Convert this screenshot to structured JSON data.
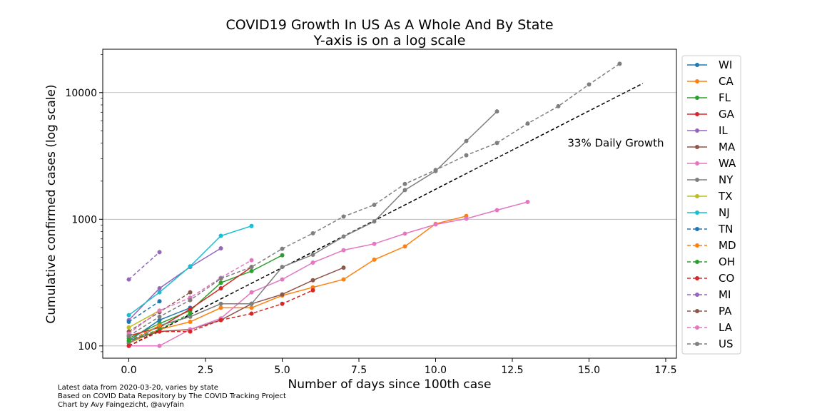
{
  "chart_data": {
    "type": "line",
    "title": "COVID19 Growth In US As A Whole And By State",
    "subtitle": "Y-axis is on a log scale",
    "xlabel": "Number of days since 100th case",
    "ylabel": "Cumulative confirmed cases (log scale)",
    "xlim": [
      -0.85,
      17.85
    ],
    "ylim": [
      80,
      22000
    ],
    "yscale": "log",
    "xticks": [
      0.0,
      2.5,
      5.0,
      7.5,
      10.0,
      12.5,
      15.0,
      17.5
    ],
    "xtick_labels": [
      "0.0",
      "2.5",
      "5.0",
      "7.5",
      "10.0",
      "12.5",
      "15.0",
      "17.5"
    ],
    "yticks": [
      100,
      1000,
      10000
    ],
    "ytick_labels": [
      "100",
      "1000",
      "10000"
    ],
    "grid": "horizontal",
    "legend_position": "right-outside",
    "annotation": {
      "text": "33% Daily Growth",
      "x": 14.3,
      "y": 4000
    },
    "reference_line": {
      "name": "33% Daily Growth",
      "style": "dashed",
      "color": "#000000",
      "x": [
        0,
        16.75
      ],
      "y": [
        100,
        11800
      ]
    },
    "series": [
      {
        "name": "WI",
        "color": "#1f77b4",
        "style": "solid",
        "x": [
          0,
          1,
          2
        ],
        "y": [
          110,
          160,
          200
        ]
      },
      {
        "name": "CA",
        "color": "#ff7f0e",
        "style": "solid",
        "x": [
          0,
          1,
          2,
          3,
          4,
          5,
          6,
          7,
          8,
          9,
          10,
          11
        ],
        "y": [
          105,
          135,
          155,
          200,
          200,
          250,
          290,
          335,
          480,
          610,
          920,
          1060
        ]
      },
      {
        "name": "FL",
        "color": "#2ca02c",
        "style": "solid",
        "x": [
          0,
          1,
          2,
          3,
          4,
          5
        ],
        "y": [
          115,
          150,
          190,
          315,
          390,
          520
        ]
      },
      {
        "name": "GA",
        "color": "#d62728",
        "style": "solid",
        "x": [
          0,
          1,
          2,
          3,
          4
        ],
        "y": [
          120,
          140,
          195,
          285,
          420
        ]
      },
      {
        "name": "IL",
        "color": "#9467bd",
        "style": "solid",
        "x": [
          0,
          1,
          2,
          3
        ],
        "y": [
          160,
          285,
          420,
          590
        ]
      },
      {
        "name": "MA",
        "color": "#8c564b",
        "style": "solid",
        "x": [
          0,
          1,
          2,
          3,
          4,
          5,
          6,
          7
        ],
        "y": [
          110,
          130,
          135,
          160,
          215,
          255,
          330,
          415
        ]
      },
      {
        "name": "WA",
        "color": "#e377c2",
        "style": "solid",
        "x": [
          0,
          1,
          2,
          3,
          4,
          5,
          6,
          7,
          8,
          9,
          10,
          11,
          12,
          13
        ],
        "y": [
          100,
          100,
          135,
          165,
          265,
          335,
          455,
          570,
          640,
          770,
          910,
          1010,
          1180,
          1370
        ]
      },
      {
        "name": "NY",
        "color": "#7f7f7f",
        "style": "solid",
        "x": [
          0,
          1,
          2,
          3,
          4,
          5,
          6,
          7,
          8,
          9,
          10,
          11,
          12
        ],
        "y": [
          105,
          145,
          170,
          215,
          215,
          420,
          525,
          730,
          960,
          1700,
          2400,
          4150,
          7100
        ]
      },
      {
        "name": "TX",
        "color": "#bcbd22",
        "style": "solid",
        "x": [
          0,
          1
        ],
        "y": [
          140,
          190
        ]
      },
      {
        "name": "NJ",
        "color": "#17becf",
        "style": "solid",
        "x": [
          0,
          1,
          2,
          3,
          4
        ],
        "y": [
          175,
          265,
          425,
          740,
          885
        ]
      },
      {
        "name": "TN",
        "color": "#1f77b4",
        "style": "dashed",
        "x": [
          0,
          1
        ],
        "y": [
          155,
          225
        ]
      },
      {
        "name": "MD",
        "color": "#ff7f0e",
        "style": "dashed",
        "x": [
          0,
          1
        ],
        "y": [
          110,
          145
        ]
      },
      {
        "name": "OH",
        "color": "#2ca02c",
        "style": "dashed",
        "x": [
          0,
          1,
          2
        ],
        "y": [
          110,
          135,
          180
        ]
      },
      {
        "name": "CO",
        "color": "#d62728",
        "style": "dashed",
        "x": [
          0,
          1,
          2,
          3,
          4,
          5,
          6
        ],
        "y": [
          100,
          130,
          130,
          160,
          180,
          215,
          275
        ]
      },
      {
        "name": "MI",
        "color": "#9467bd",
        "style": "dashed",
        "x": [
          0,
          1
        ],
        "y": [
          335,
          550
        ]
      },
      {
        "name": "PA",
        "color": "#8c564b",
        "style": "dashed",
        "x": [
          0,
          1,
          2
        ],
        "y": [
          130,
          185,
          265
        ]
      },
      {
        "name": "LA",
        "color": "#e377c2",
        "style": "dashed",
        "x": [
          0,
          1,
          2,
          3,
          4
        ],
        "y": [
          125,
          190,
          240,
          345,
          475
        ]
      },
      {
        "name": "US",
        "color": "#7f7f7f",
        "style": "dashed",
        "x": [
          0,
          1,
          2,
          3,
          4,
          5,
          6,
          7,
          8,
          9,
          10,
          11,
          12,
          13,
          14,
          15,
          16
        ],
        "y": [
          120,
          170,
          230,
          340,
          420,
          585,
          775,
          1050,
          1300,
          1900,
          2450,
          3200,
          4000,
          5700,
          7800,
          11600,
          16900
        ]
      }
    ]
  },
  "footnotes": [
    "Latest data from 2020-03-20, varies by state",
    "Based on COVID Data Repository by The COVID Tracking Project",
    "Chart by Avy Faingezicht, @avyfain"
  ]
}
